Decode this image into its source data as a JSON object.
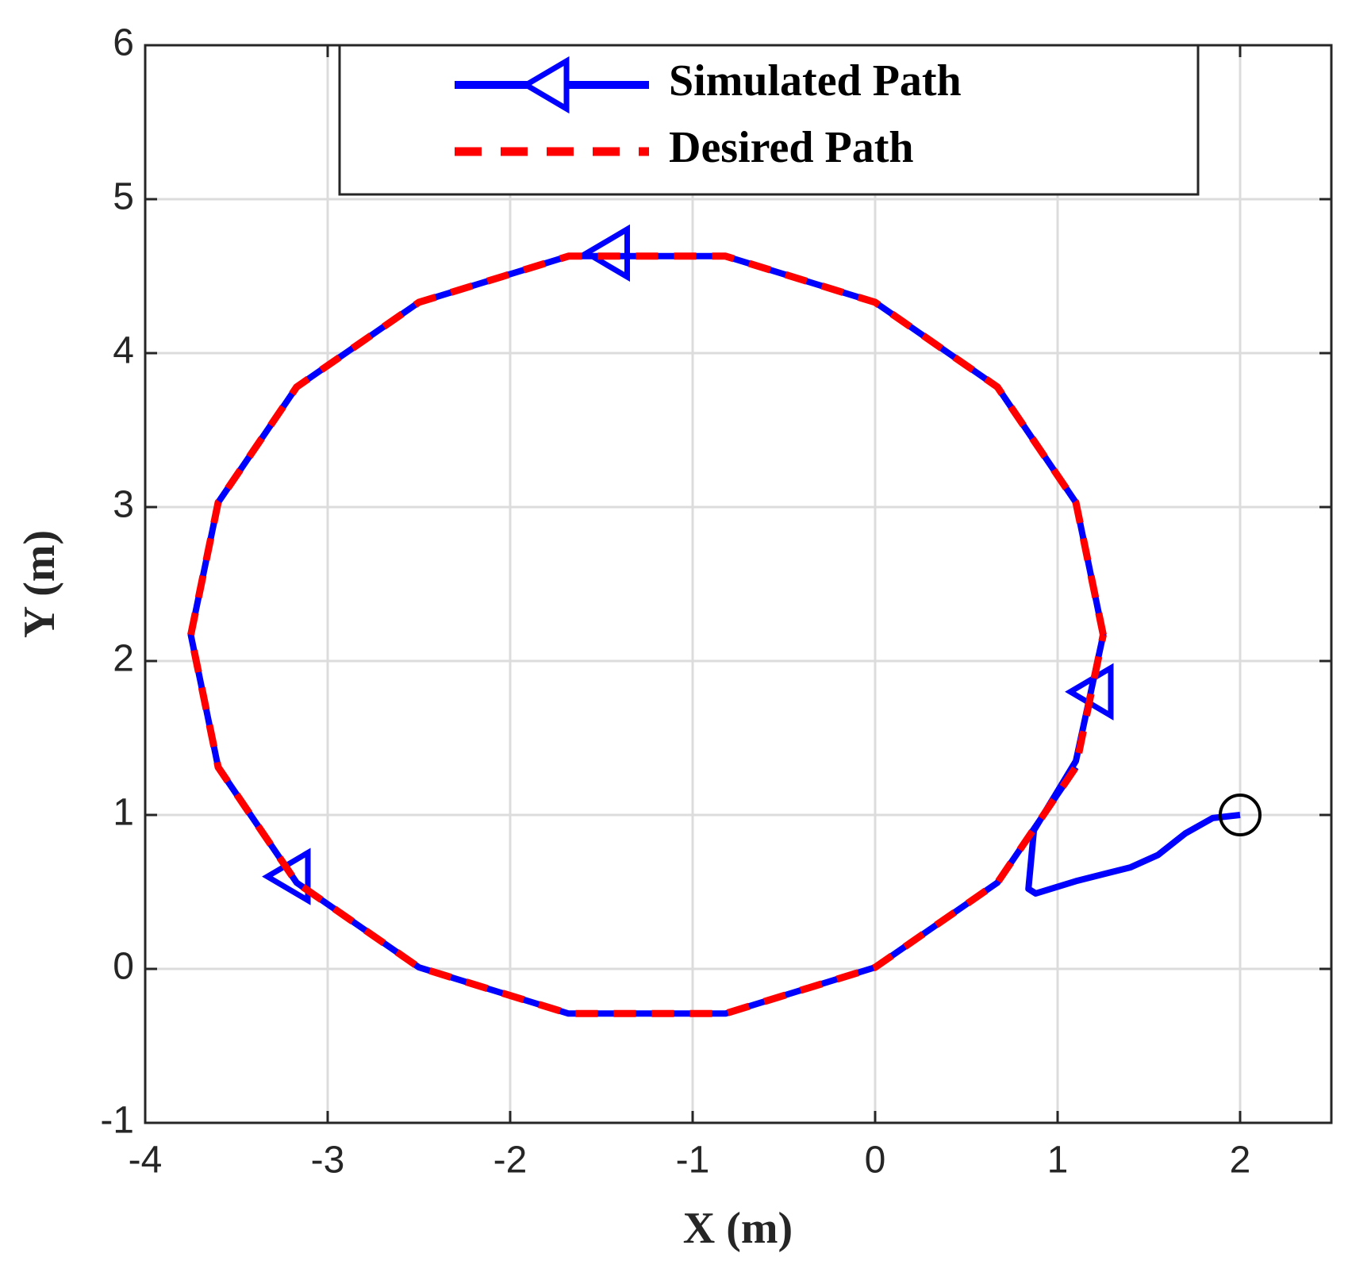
{
  "chart_data": {
    "type": "line",
    "xlabel": "X (m)",
    "ylabel": "Y (m)",
    "xlim": [
      -4,
      2.5
    ],
    "ylim": [
      -1,
      6
    ],
    "xticks": [
      -4,
      -3,
      -2,
      -1,
      0,
      1,
      2
    ],
    "yticks": [
      -1,
      0,
      1,
      2,
      3,
      4,
      5,
      6
    ],
    "grid": true,
    "legend": "top",
    "series": [
      {
        "name": "Simulated Path",
        "color": "#0000ff",
        "style": "solid",
        "x": [
          2,
          1.85,
          1.7,
          1.55,
          1.4,
          1.1,
          0.88,
          0.84,
          0.87,
          1.1,
          1.25,
          1.1,
          0.67,
          0.0,
          -0.82,
          -1.68,
          -2.5,
          -3.17,
          -3.6,
          -3.75,
          -3.6,
          -3.17,
          -2.5,
          -1.68,
          -0.82,
          0.0,
          0.67,
          1.1
        ],
        "y": [
          1,
          0.98,
          0.88,
          0.74,
          0.66,
          0.57,
          0.49,
          0.52,
          0.9,
          1.35,
          2.17,
          3.03,
          3.78,
          4.33,
          4.63,
          4.63,
          4.33,
          3.78,
          3.03,
          2.17,
          1.31,
          0.56,
          0.01,
          -0.29,
          -0.29,
          0.01,
          0.56,
          1.31
        ],
        "markers": {
          "x": [
            1.2,
            -1.45,
            -3.2
          ],
          "y": [
            1.8,
            4.65,
            0.6
          ]
        },
        "start": {
          "x": 2,
          "y": 1
        }
      },
      {
        "name": "Desired Path",
        "color": "#ff0000",
        "style": "dashed",
        "x": [
          1.25,
          1.1,
          0.67,
          0.0,
          -0.82,
          -1.68,
          -2.5,
          -3.17,
          -3.6,
          -3.75,
          -3.6,
          -3.17,
          -2.5,
          -1.68,
          -0.82,
          0.0,
          0.67,
          1.1,
          1.25
        ],
        "y": [
          2.17,
          3.03,
          3.78,
          4.33,
          4.63,
          4.63,
          4.33,
          3.78,
          3.03,
          2.17,
          1.31,
          0.56,
          0.01,
          -0.29,
          -0.29,
          0.01,
          0.56,
          1.31,
          2.17
        ]
      }
    ]
  }
}
